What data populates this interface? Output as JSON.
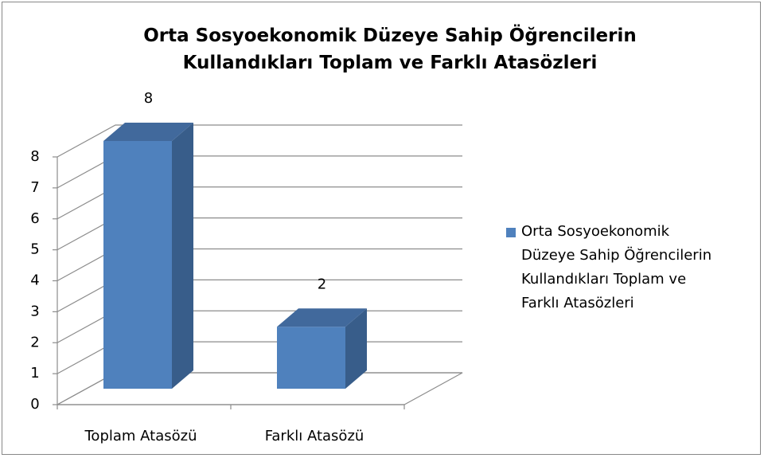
{
  "chart_data": {
    "type": "bar3d",
    "title": "Orta Sosyoekonomik Düzeye Sahip Öğrencilerin Kullandıkları Toplam ve Farklı Atasözleri",
    "categories": [
      "Toplam Atasözü",
      "Farklı Atasözü"
    ],
    "series": [
      {
        "name": "Orta Sosyoekonomik Düzeye Sahip Öğrencilerin Kullandıkları Toplam ve Farklı Atasözleri",
        "color": "#4f81bd",
        "values": [
          8,
          2
        ]
      }
    ],
    "ylim": [
      0,
      8
    ],
    "yticks": [
      0,
      1,
      2,
      3,
      4,
      5,
      6,
      7,
      8
    ],
    "grid": true,
    "legend": "right"
  }
}
